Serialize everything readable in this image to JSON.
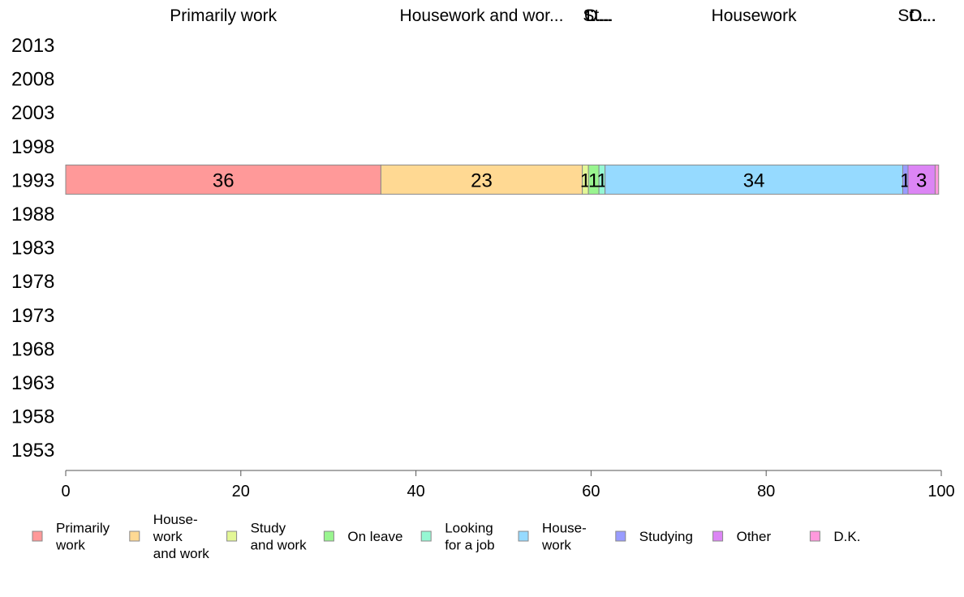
{
  "chart_data": {
    "type": "bar",
    "orientation": "horizontal",
    "stacked": true,
    "categories": [
      "2013",
      "2008",
      "2003",
      "1998",
      "1993",
      "1988",
      "1983",
      "1978",
      "1973",
      "1968",
      "1963",
      "1958",
      "1953"
    ],
    "xlim": [
      0,
      100
    ],
    "xticks": [
      0,
      20,
      40,
      60,
      80,
      100
    ],
    "top_labels": [
      "Primarily work",
      "Housework and wor...",
      "St...",
      "O...",
      "L...",
      "Housework",
      "St...",
      "O...",
      "D..."
    ],
    "series": [
      {
        "name": "Primarily work",
        "legend": [
          "Primarily",
          "work"
        ],
        "color": "#ff9999",
        "values": {
          "1993": 36
        },
        "label": "36"
      },
      {
        "name": "Housework and work",
        "legend": [
          "House-",
          "work",
          "and work"
        ],
        "color": "#ffd993",
        "values": {
          "1993": 23
        },
        "label": "23"
      },
      {
        "name": "Study and work",
        "legend": [
          "Study",
          "and work"
        ],
        "color": "#e3f796",
        "values": {
          "1993": 0.7
        },
        "label": "1"
      },
      {
        "name": "On leave",
        "legend": [
          "On leave"
        ],
        "color": "#99f58f",
        "values": {
          "1993": 1.2
        },
        "label": "1"
      },
      {
        "name": "Looking for a job",
        "legend": [
          "Looking",
          "for a job"
        ],
        "color": "#96f7d3",
        "values": {
          "1993": 0.7
        },
        "label": "1"
      },
      {
        "name": "Housework",
        "legend": [
          "House-",
          "work"
        ],
        "color": "#96daff",
        "values": {
          "1993": 34
        },
        "label": "34"
      },
      {
        "name": "Studying",
        "legend": [
          "Studying"
        ],
        "color": "#999cff",
        "values": {
          "1993": 0.6
        },
        "label": "1"
      },
      {
        "name": "Other",
        "legend": [
          "Other"
        ],
        "color": "#dc85f5",
        "values": {
          "1993": 3.1
        },
        "label": "3"
      },
      {
        "name": "D.K.",
        "legend": [
          "D.K."
        ],
        "color": "#ff99dd",
        "values": {
          "1993": 0.4
        },
        "label": ""
      }
    ]
  }
}
